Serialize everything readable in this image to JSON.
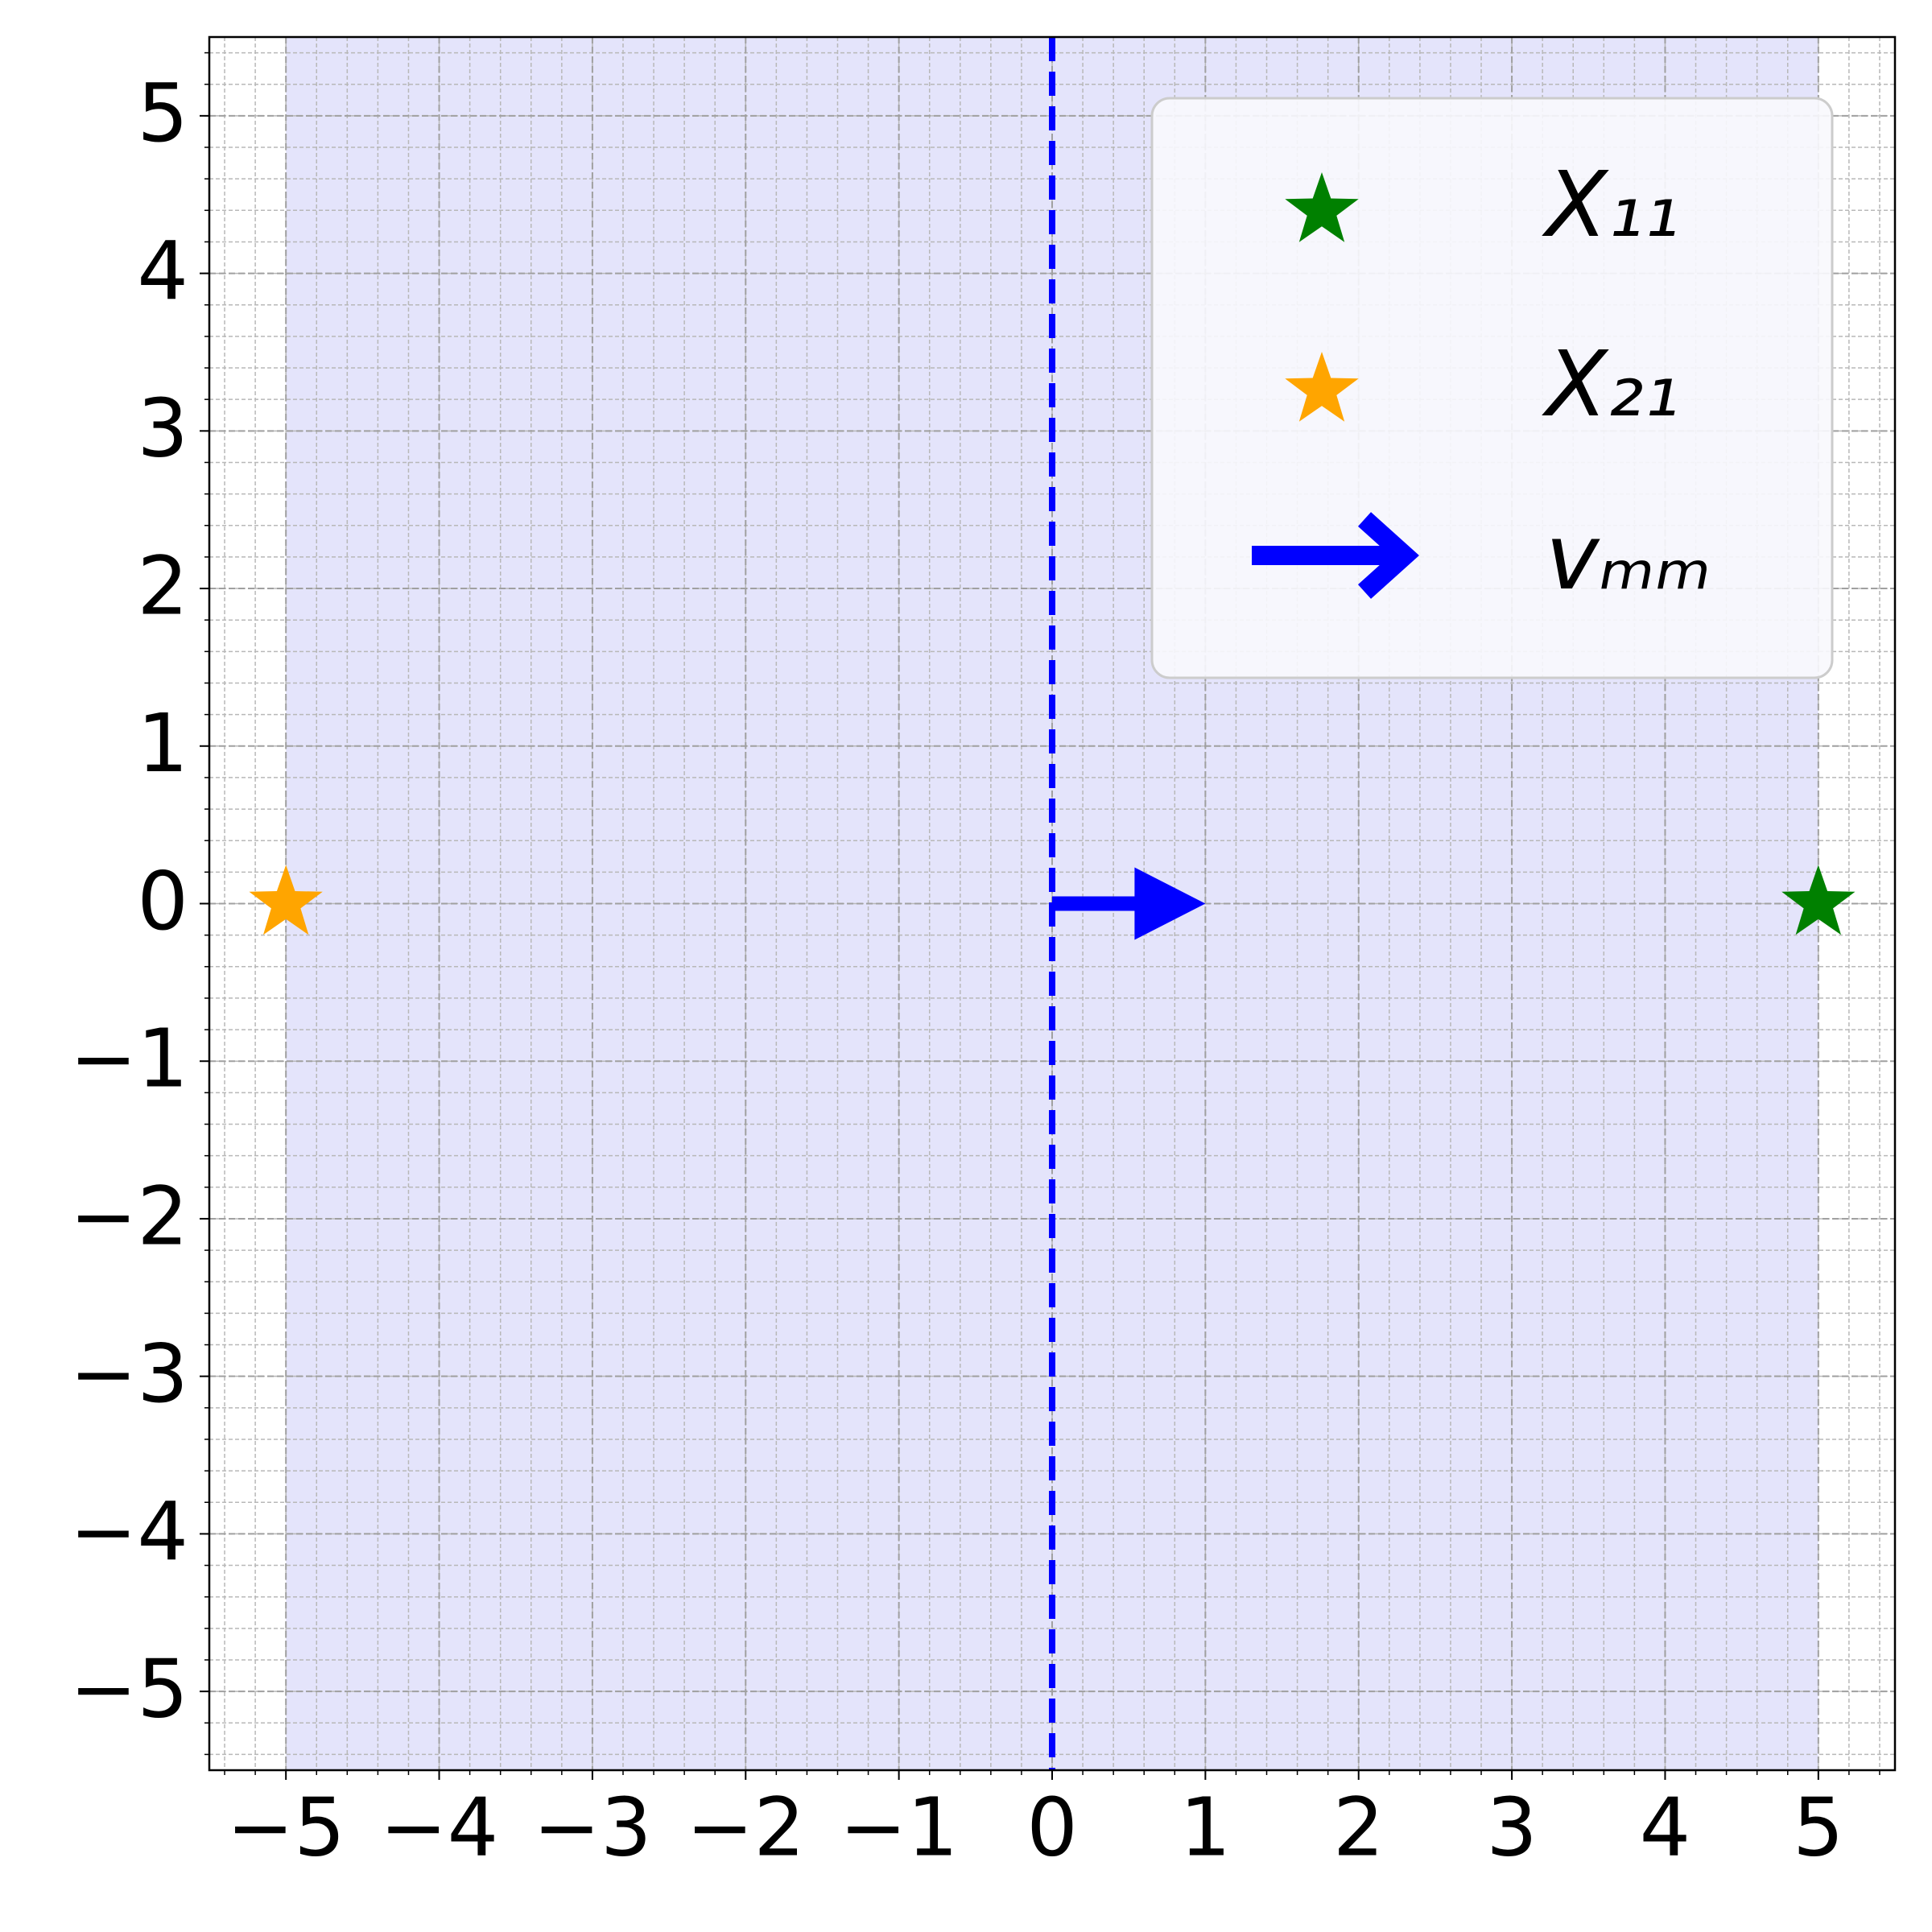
{
  "chart_data": {
    "type": "scatter",
    "xlim": [
      -5.5,
      5.5
    ],
    "ylim": [
      -5.5,
      5.5
    ],
    "xticks": [
      {
        "value": -5,
        "label": "−5"
      },
      {
        "value": -4,
        "label": "−4"
      },
      {
        "value": -3,
        "label": "−3"
      },
      {
        "value": -2,
        "label": "−2"
      },
      {
        "value": -1,
        "label": "−1"
      },
      0,
      1,
      2,
      3,
      4,
      5
    ],
    "yticks": [
      {
        "value": -5,
        "label": "−5"
      },
      {
        "value": -4,
        "label": "−4"
      },
      {
        "value": -3,
        "label": "−3"
      },
      {
        "value": -2,
        "label": "−2"
      },
      {
        "value": -1,
        "label": "−1"
      },
      0,
      1,
      2,
      3,
      4,
      5
    ],
    "grid": true,
    "minor_grid_step": 0.2,
    "shaded_xspan": [
      -5,
      5
    ],
    "shade_color": "#e4e4fb",
    "vline": {
      "x": 0,
      "color": "#0000ff",
      "style": "dashed"
    },
    "series": [
      {
        "name": "X₁₁",
        "color": "#008000",
        "x": [
          5
        ],
        "values": [
          0
        ]
      },
      {
        "name": "X₂₁",
        "color": "#ffa500",
        "x": [
          -5
        ],
        "values": [
          0
        ]
      }
    ],
    "arrow": {
      "name": "vₘₘ",
      "color": "#0000ff",
      "x": 0,
      "y": 0,
      "dx": 1,
      "dy": 0
    },
    "legend": "upper right"
  }
}
